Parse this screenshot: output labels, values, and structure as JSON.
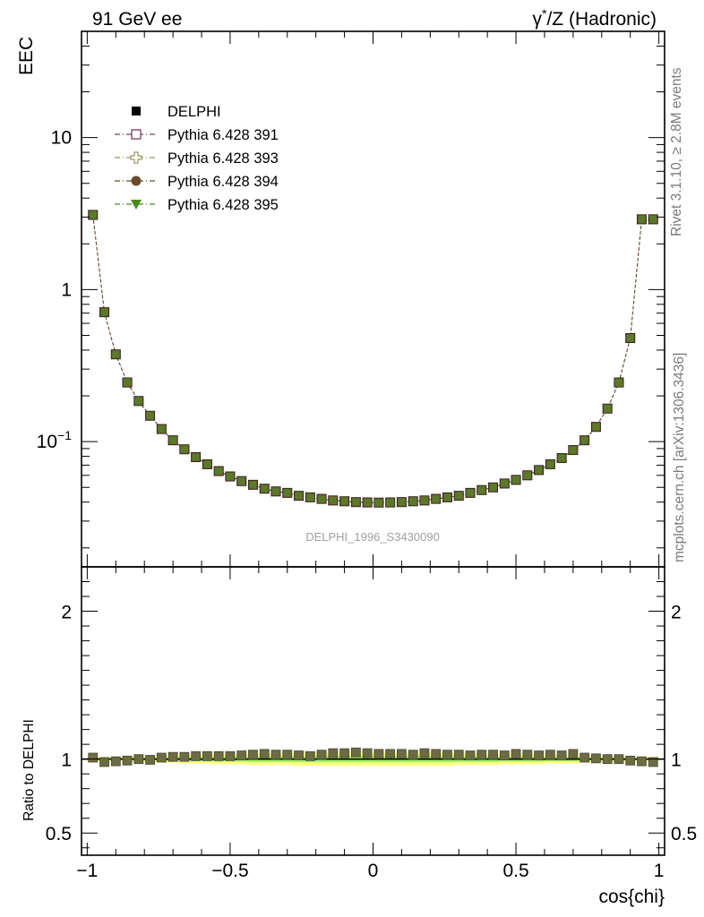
{
  "header": {
    "left_label": "91 GeV ee",
    "right_label_prefix": "γ",
    "right_label_sup": "*",
    "right_label_rest": "/Z (Hadronic)"
  },
  "side_text": {
    "rivet": "Rivet 3.1.10, ≥ 2.8M events",
    "mcplots": "mcplots.cern.ch [arXiv:1306.3436]"
  },
  "watermark": "DELPHI_1996_S3430090",
  "chart_data": [
    {
      "type": "scatter",
      "panel": "main",
      "ylabel": "EEC",
      "yscale": "log",
      "ylim": [
        0.015,
        50
      ],
      "xlim": [
        -1.02,
        1.02
      ],
      "yticks": [
        {
          "value": 10,
          "label": "10"
        },
        {
          "value": 1,
          "label": "1"
        },
        {
          "value": 0.1,
          "label": "10",
          "sup": "−1"
        }
      ],
      "legend": [
        {
          "name": "DELPHI",
          "marker": "filled-square",
          "color": "#000000"
        },
        {
          "name": "Pythia 6.428 391",
          "marker": "open-square",
          "color": "#7a3d5c"
        },
        {
          "name": "Pythia 6.428 393",
          "marker": "open-cross",
          "color": "#9e9460"
        },
        {
          "name": "Pythia 6.428 394",
          "marker": "filled-circle",
          "color": "#6b4a2a"
        },
        {
          "name": "Pythia 6.428 395",
          "marker": "filled-triangle-down",
          "color": "#4a8a1a"
        }
      ],
      "x": [
        -0.98,
        -0.94,
        -0.9,
        -0.86,
        -0.82,
        -0.78,
        -0.74,
        -0.7,
        -0.66,
        -0.62,
        -0.58,
        -0.54,
        -0.5,
        -0.46,
        -0.42,
        -0.38,
        -0.34,
        -0.3,
        -0.26,
        -0.22,
        -0.18,
        -0.14,
        -0.1,
        -0.06,
        -0.02,
        0.02,
        0.06,
        0.1,
        0.14,
        0.18,
        0.22,
        0.26,
        0.3,
        0.34,
        0.38,
        0.42,
        0.46,
        0.5,
        0.54,
        0.58,
        0.62,
        0.66,
        0.7,
        0.74,
        0.78,
        0.82,
        0.86,
        0.9,
        0.94,
        0.98
      ],
      "series": [
        {
          "name": "DELPHI",
          "values": [
            3.1,
            0.71,
            0.375,
            0.245,
            0.185,
            0.148,
            0.121,
            0.102,
            0.089,
            0.079,
            0.071,
            0.064,
            0.059,
            0.055,
            0.052,
            0.049,
            0.047,
            0.046,
            0.044,
            0.043,
            0.042,
            0.041,
            0.0405,
            0.04,
            0.0398,
            0.0397,
            0.0398,
            0.04,
            0.0405,
            0.041,
            0.042,
            0.043,
            0.044,
            0.046,
            0.048,
            0.05,
            0.053,
            0.056,
            0.06,
            0.065,
            0.071,
            0.078,
            0.088,
            0.102,
            0.125,
            0.165,
            0.245,
            0.48,
            2.9,
            2.9
          ]
        }
      ]
    },
    {
      "type": "scatter",
      "panel": "ratio",
      "ylabel": "Ratio to DELPHI",
      "xlabel": "cos{chi}",
      "ylim": [
        0.35,
        2.3
      ],
      "xlim": [
        -1.02,
        1.02
      ],
      "yticks": [
        {
          "value": 2,
          "label": "2"
        },
        {
          "value": 1,
          "label": "1"
        },
        {
          "value": 0.5,
          "label": "0.5"
        }
      ],
      "xticks": [
        {
          "value": -1,
          "label": "−1"
        },
        {
          "value": -0.5,
          "label": "−0.5"
        },
        {
          "value": 0,
          "label": "0"
        },
        {
          "value": 0.5,
          "label": "0.5"
        },
        {
          "value": 1,
          "label": "1"
        }
      ],
      "x": [
        -0.98,
        -0.94,
        -0.9,
        -0.86,
        -0.82,
        -0.78,
        -0.74,
        -0.7,
        -0.66,
        -0.62,
        -0.58,
        -0.54,
        -0.5,
        -0.46,
        -0.42,
        -0.38,
        -0.34,
        -0.3,
        -0.26,
        -0.22,
        -0.18,
        -0.14,
        -0.1,
        -0.06,
        -0.02,
        0.02,
        0.06,
        0.1,
        0.14,
        0.18,
        0.22,
        0.26,
        0.3,
        0.34,
        0.38,
        0.42,
        0.46,
        0.5,
        0.54,
        0.58,
        0.62,
        0.66,
        0.7,
        0.74,
        0.78,
        0.82,
        0.86,
        0.9,
        0.94,
        0.98
      ],
      "series": [
        {
          "name": "Pythia 6.428 395",
          "values": [
            1.01,
            0.98,
            0.985,
            0.99,
            1.0,
            0.995,
            1.01,
            1.015,
            1.015,
            1.02,
            1.02,
            1.02,
            1.02,
            1.025,
            1.03,
            1.035,
            1.03,
            1.03,
            1.025,
            1.02,
            1.03,
            1.04,
            1.04,
            1.045,
            1.04,
            1.035,
            1.035,
            1.035,
            1.03,
            1.04,
            1.035,
            1.03,
            1.03,
            1.025,
            1.03,
            1.03,
            1.025,
            1.035,
            1.03,
            1.025,
            1.03,
            1.025,
            1.035,
            1.01,
            1.005,
            1.0,
            1.0,
            0.99,
            0.985,
            0.98
          ]
        }
      ],
      "band_lower": [
        0.985,
        0.985,
        0.985,
        0.985,
        0.98,
        0.98,
        0.975,
        0.975,
        0.97,
        0.97,
        0.97,
        0.965,
        0.965,
        0.965,
        0.96,
        0.96,
        0.96,
        0.96,
        0.955,
        0.955,
        0.955,
        0.955,
        0.955,
        0.955,
        0.955,
        0.955,
        0.955,
        0.955,
        0.955,
        0.955,
        0.955,
        0.955,
        0.96,
        0.96,
        0.96,
        0.96,
        0.965,
        0.965,
        0.965,
        0.965,
        0.97,
        0.97,
        0.97,
        0.975,
        0.975,
        0.98,
        0.98,
        0.985,
        0.985,
        0.985
      ],
      "band_upper": [
        1.015,
        1.015,
        1.015,
        1.015,
        1.02,
        1.02,
        1.025,
        1.025,
        1.03,
        1.03,
        1.03,
        1.035,
        1.035,
        1.035,
        1.04,
        1.04,
        1.04,
        1.04,
        1.045,
        1.045,
        1.045,
        1.045,
        1.045,
        1.045,
        1.045,
        1.045,
        1.045,
        1.045,
        1.045,
        1.045,
        1.045,
        1.045,
        1.04,
        1.04,
        1.04,
        1.04,
        1.035,
        1.035,
        1.035,
        1.035,
        1.03,
        1.03,
        1.03,
        1.025,
        1.025,
        1.02,
        1.02,
        1.015,
        1.015,
        1.015
      ]
    }
  ]
}
